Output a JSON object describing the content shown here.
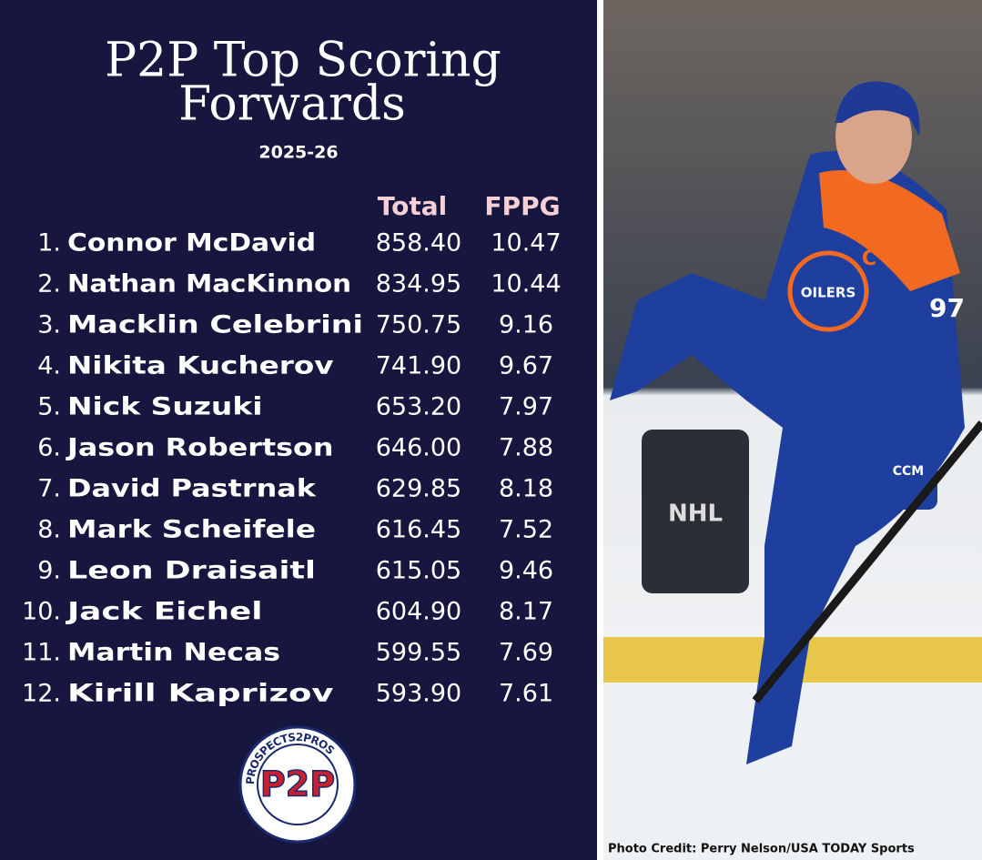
{
  "header": {
    "title_line1": "P2P Top Scoring",
    "title_line2": "Forwards",
    "season": "2025-26"
  },
  "table": {
    "columns": [
      "Total",
      "FPPG"
    ],
    "rows": [
      [
        "1.",
        "Connor McDavid",
        "858.40",
        "10.47"
      ],
      [
        "2.",
        "Nathan MacKinnon",
        "834.95",
        "10.44"
      ],
      [
        "3.",
        "Macklin Celebrini",
        "750.75",
        "9.16"
      ],
      [
        "4.",
        "Nikita Kucherov",
        "741.90",
        "9.67"
      ],
      [
        "5.",
        "Nick Suzuki",
        "653.20",
        "7.97"
      ],
      [
        "6.",
        "Jason Robertson",
        "646.00",
        "7.88"
      ],
      [
        "7.",
        "David Pastrnak",
        "629.85",
        "8.18"
      ],
      [
        "8.",
        "Mark Scheifele",
        "616.45",
        "7.52"
      ],
      [
        "9.",
        "Leon Draisaitl",
        "615.05",
        "9.46"
      ],
      [
        "10.",
        "Jack Eichel",
        "604.90",
        "8.17"
      ],
      [
        "11.",
        "Martin Necas",
        "599.55",
        "7.69"
      ],
      [
        "12.",
        "Kirill Kaprizov",
        "593.90",
        "7.61"
      ]
    ]
  },
  "logo": {
    "ring_text": "PROSPECTS2PROS",
    "mark": "P2P"
  },
  "photo": {
    "jersey": "OILERS",
    "captain": "C",
    "number": "97",
    "board": "NHL",
    "glove": "CCM",
    "credit": "Photo Credit: Perry Nelson/USA TODAY Sports"
  }
}
